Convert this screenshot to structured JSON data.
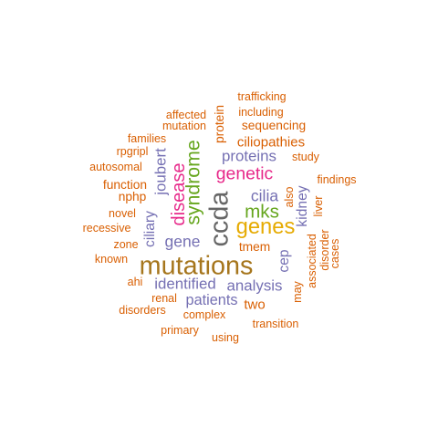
{
  "palette": {
    "orange": "#d95f02",
    "purple": "#7570b3",
    "magenta": "#e7298a",
    "green": "#66a61e",
    "gold": "#e6ab02",
    "brown": "#a6761d",
    "gray": "#666666"
  },
  "words": [
    {
      "text": "trafficking",
      "color": "orange",
      "weight": 1,
      "vertical": false
    },
    {
      "text": "including",
      "color": "orange",
      "weight": 1,
      "vertical": false
    },
    {
      "text": "affected",
      "color": "orange",
      "weight": 1,
      "vertical": false
    },
    {
      "text": "mutation",
      "color": "orange",
      "weight": 1,
      "vertical": false
    },
    {
      "text": "protein",
      "color": "orange",
      "weight": 1.1,
      "vertical": true
    },
    {
      "text": "sequencing",
      "color": "orange",
      "weight": 1.1,
      "vertical": false
    },
    {
      "text": "families",
      "color": "orange",
      "weight": 1,
      "vertical": false
    },
    {
      "text": "ciliopathies",
      "color": "orange",
      "weight": 1.2,
      "vertical": false
    },
    {
      "text": "rpgripl",
      "color": "orange",
      "weight": 1,
      "vertical": false
    },
    {
      "text": "joubert",
      "color": "purple",
      "weight": 1.35,
      "vertical": true
    },
    {
      "text": "syndrome",
      "color": "green",
      "weight": 1.7,
      "vertical": true
    },
    {
      "text": "proteins",
      "color": "purple",
      "weight": 1.35,
      "vertical": false
    },
    {
      "text": "study",
      "color": "orange",
      "weight": 1,
      "vertical": false
    },
    {
      "text": "autosomal",
      "color": "orange",
      "weight": 1,
      "vertical": false
    },
    {
      "text": "genetic",
      "color": "magenta",
      "weight": 1.55,
      "vertical": false
    },
    {
      "text": "findings",
      "color": "orange",
      "weight": 1,
      "vertical": false
    },
    {
      "text": "function",
      "color": "orange",
      "weight": 1.1,
      "vertical": false
    },
    {
      "text": "disease",
      "color": "magenta",
      "weight": 1.6,
      "vertical": true
    },
    {
      "text": "nphp",
      "color": "orange",
      "weight": 1.1,
      "vertical": false
    },
    {
      "text": "ccda",
      "color": "gray",
      "weight": 2.3,
      "vertical": true
    },
    {
      "text": "cilia",
      "color": "purple",
      "weight": 1.4,
      "vertical": false
    },
    {
      "text": "also",
      "color": "orange",
      "weight": 1,
      "vertical": true
    },
    {
      "text": "kidney",
      "color": "purple",
      "weight": 1.25,
      "vertical": true
    },
    {
      "text": "liver",
      "color": "orange",
      "weight": 1,
      "vertical": true
    },
    {
      "text": "novel",
      "color": "orange",
      "weight": 1,
      "vertical": false
    },
    {
      "text": "mks",
      "color": "green",
      "weight": 1.65,
      "vertical": false
    },
    {
      "text": "ciliary",
      "color": "purple",
      "weight": 1.25,
      "vertical": true
    },
    {
      "text": "recessive",
      "color": "orange",
      "weight": 1,
      "vertical": false
    },
    {
      "text": "genes",
      "color": "gold",
      "weight": 1.9,
      "vertical": false
    },
    {
      "text": "gene",
      "color": "purple",
      "weight": 1.4,
      "vertical": false
    },
    {
      "text": "zone",
      "color": "orange",
      "weight": 1,
      "vertical": false
    },
    {
      "text": "tmem",
      "color": "orange",
      "weight": 1.1,
      "vertical": false
    },
    {
      "text": "associated",
      "color": "orange",
      "weight": 1,
      "vertical": true
    },
    {
      "text": "disorder",
      "color": "orange",
      "weight": 1,
      "vertical": true
    },
    {
      "text": "cases",
      "color": "orange",
      "weight": 1,
      "vertical": true
    },
    {
      "text": "known",
      "color": "orange",
      "weight": 1,
      "vertical": false
    },
    {
      "text": "mutations",
      "color": "brown",
      "weight": 2.3,
      "vertical": false
    },
    {
      "text": "cep",
      "color": "purple",
      "weight": 1.25,
      "vertical": true
    },
    {
      "text": "ahi",
      "color": "orange",
      "weight": 1,
      "vertical": false
    },
    {
      "text": "identified",
      "color": "purple",
      "weight": 1.35,
      "vertical": false
    },
    {
      "text": "analysis",
      "color": "purple",
      "weight": 1.35,
      "vertical": false
    },
    {
      "text": "may",
      "color": "orange",
      "weight": 1,
      "vertical": true
    },
    {
      "text": "renal",
      "color": "orange",
      "weight": 1,
      "vertical": false
    },
    {
      "text": "patients",
      "color": "purple",
      "weight": 1.3,
      "vertical": false
    },
    {
      "text": "two",
      "color": "orange",
      "weight": 1.2,
      "vertical": false
    },
    {
      "text": "disorders",
      "color": "orange",
      "weight": 1,
      "vertical": false
    },
    {
      "text": "complex",
      "color": "orange",
      "weight": 1,
      "vertical": false
    },
    {
      "text": "transition",
      "color": "orange",
      "weight": 1,
      "vertical": false
    },
    {
      "text": "primary",
      "color": "orange",
      "weight": 1,
      "vertical": false
    },
    {
      "text": "using",
      "color": "orange",
      "weight": 1,
      "vertical": false
    }
  ]
}
